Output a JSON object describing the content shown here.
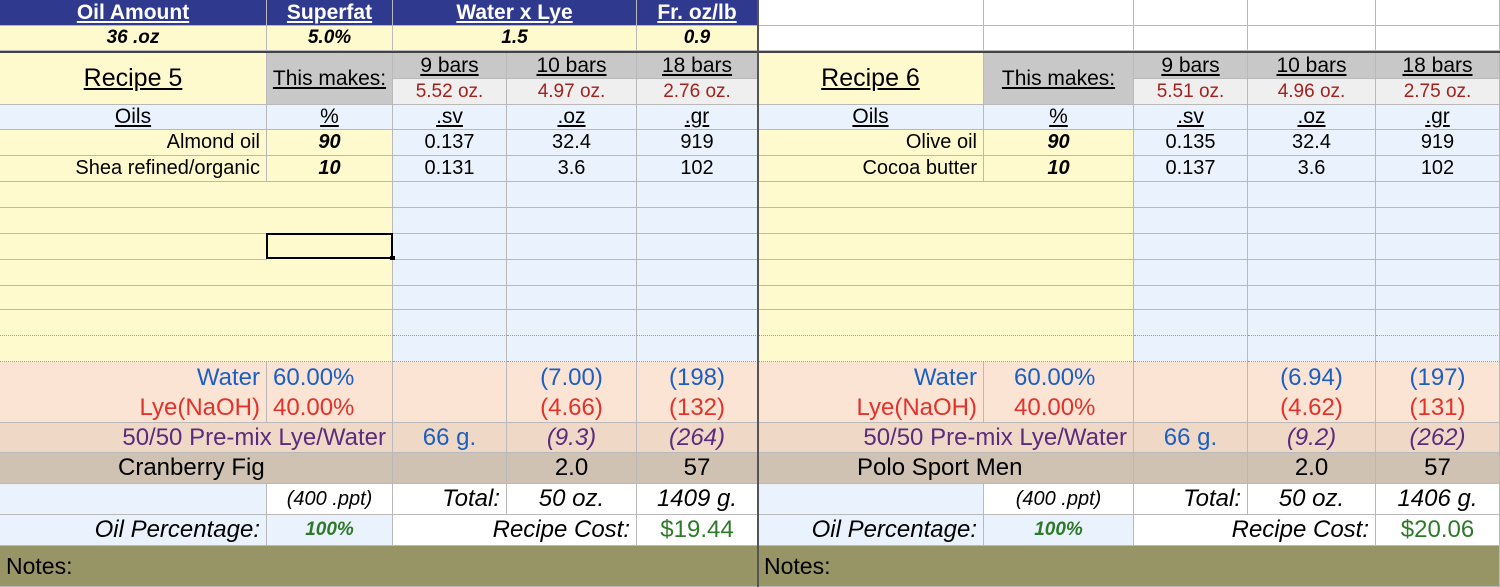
{
  "top": {
    "headers": [
      "Oil Amount",
      "Superfat",
      "Water x Lye",
      "Fr. oz/lb"
    ],
    "values": [
      "36 .oz",
      "5.0%",
      "1.5",
      "0.9"
    ]
  },
  "recipes": [
    {
      "title": "Recipe 5",
      "makes_label": "This makes:",
      "bars": [
        "9 bars",
        "10 bars",
        "18 bars"
      ],
      "bar_weights": [
        "5.52 oz.",
        "4.97 oz.",
        "2.76 oz."
      ],
      "col_headers": [
        "Oils",
        "%",
        ".sv",
        ".oz",
        ".gr"
      ],
      "oils": [
        {
          "name": "Almond oil",
          "pct": "90",
          "sv": "0.137",
          "oz": "32.4",
          "gr": "919"
        },
        {
          "name": "Shea refined/organic",
          "pct": "10",
          "sv": "0.131",
          "oz": "3.6",
          "gr": "102"
        }
      ],
      "water_label": "Water",
      "water_pct": "60.00%",
      "water_oz": "(7.00)",
      "water_gr": "(198)",
      "lye_label": "Lye(NaOH)",
      "lye_pct": "40.00%",
      "lye_oz": "(4.66)",
      "lye_gr": "(132)",
      "premix_label": "50/50 Pre-mix Lye/Water",
      "premix_g": "66 g.",
      "premix_oz": "(9.3)",
      "premix_gr": "(264)",
      "fragrance": "Cranberry Fig",
      "frag_oz": "2.0",
      "frag_gr": "57",
      "ppt": "(400 .ppt)",
      "total_label": "Total:",
      "total_oz": "50 oz.",
      "total_g": "1409 g.",
      "oil_pct_label": "Oil Percentage:",
      "oil_pct": "100%",
      "cost_label": "Recipe Cost:",
      "cost": "$19.44",
      "notes": "Notes:"
    },
    {
      "title": "Recipe 6",
      "makes_label": "This makes:",
      "bars": [
        "9 bars",
        "10 bars",
        "18 bars"
      ],
      "bar_weights": [
        "5.51 oz.",
        "4.96 oz.",
        "2.75 oz."
      ],
      "col_headers": [
        "Oils",
        "%",
        ".sv",
        ".oz",
        ".gr"
      ],
      "oils": [
        {
          "name": "Olive oil",
          "pct": "90",
          "sv": "0.135",
          "oz": "32.4",
          "gr": "919"
        },
        {
          "name": "Cocoa butter",
          "pct": "10",
          "sv": "0.137",
          "oz": "3.6",
          "gr": "102"
        }
      ],
      "water_label": "Water",
      "water_pct": "60.00%",
      "water_oz": "(6.94)",
      "water_gr": "(197)",
      "lye_label": "Lye(NaOH)",
      "lye_pct": "40.00%",
      "lye_oz": "(4.62)",
      "lye_gr": "(131)",
      "premix_label": "50/50 Pre-mix Lye/Water",
      "premix_g": "66 g.",
      "premix_oz": "(9.2)",
      "premix_gr": "(262)",
      "fragrance": "Polo Sport Men",
      "frag_oz": "2.0",
      "frag_gr": "57",
      "ppt": "(400 .ppt)",
      "total_label": "Total:",
      "total_oz": "50 oz.",
      "total_g": "1406 g.",
      "oil_pct_label": "Oil Percentage:",
      "oil_pct": "100%",
      "cost_label": "Recipe Cost:",
      "cost": "$20.06",
      "notes": "Notes:"
    }
  ]
}
